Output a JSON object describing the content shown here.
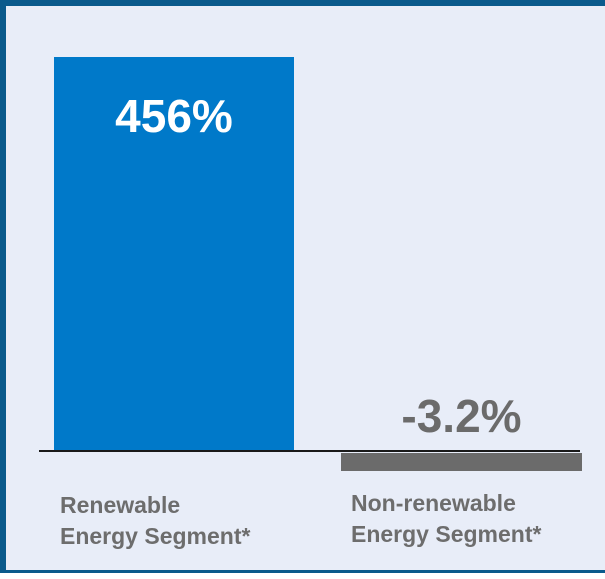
{
  "chart_data": {
    "type": "bar",
    "categories": [
      [
        "Renewable",
        "Energy Segment*"
      ],
      [
        "Non-renewable",
        "Energy Segment*"
      ]
    ],
    "values": [
      456,
      -3.2
    ],
    "value_labels": [
      "456%",
      "-3.2%"
    ],
    "unit": "%",
    "colors": [
      "#0079c9",
      "#6b6b6b"
    ],
    "value_label_colors": [
      "#ffffff",
      "#6b6b6b"
    ],
    "baseline_color": "#1a1a1a",
    "background": "#e8edf8",
    "frame_color": "#0a5a8c",
    "grid": false,
    "legend": "none",
    "title": "",
    "xlabel": "",
    "ylabel": ""
  }
}
